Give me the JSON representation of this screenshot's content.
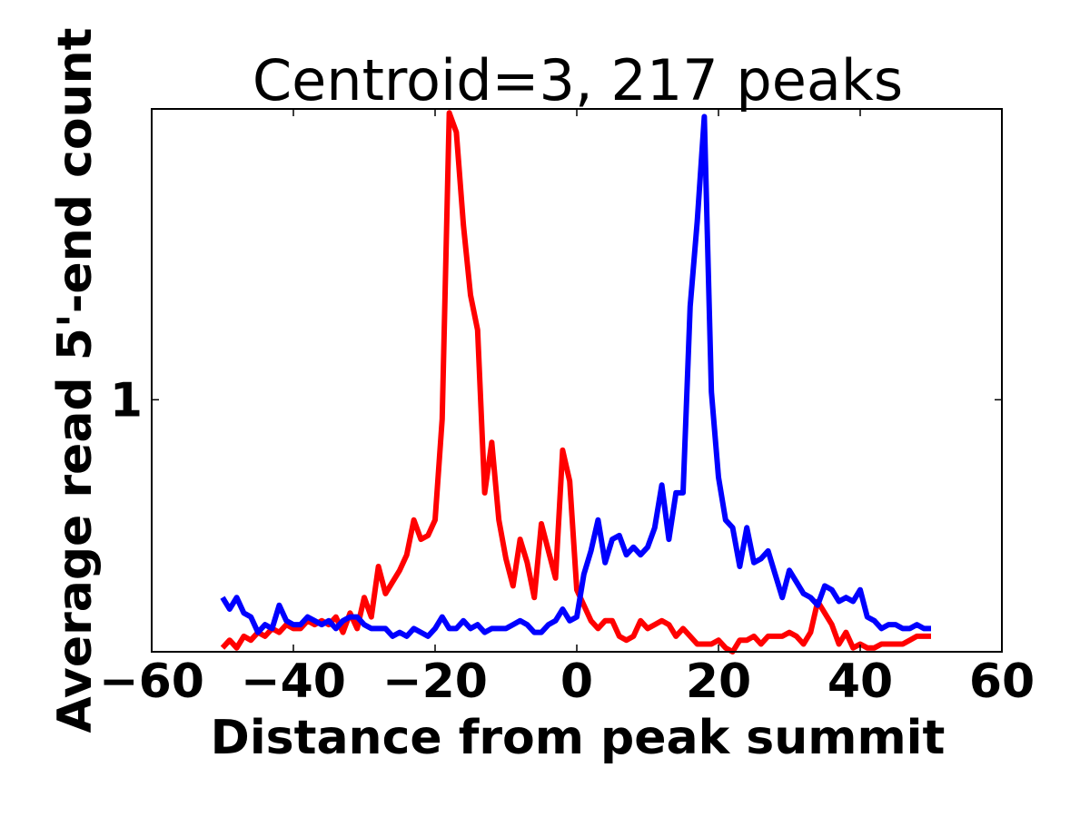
{
  "chart_data": {
    "type": "line",
    "title": "Centroid=3, 217 peaks",
    "xlabel": "Distance from peak summit",
    "ylabel": "Average read 5'-end count",
    "xlim": [
      -60,
      60
    ],
    "ylim": [
      0.35,
      1.75
    ],
    "x_ticks": [
      -60,
      -40,
      -20,
      0,
      20,
      40,
      60
    ],
    "x_tick_labels": [
      "−60",
      "−40",
      "−20",
      "0",
      "20",
      "40",
      "60"
    ],
    "y_ticks": [
      1
    ],
    "y_tick_labels": [
      "1"
    ],
    "grid": false,
    "legend": "none",
    "x": [
      -50,
      -49,
      -48,
      -47,
      -46,
      -45,
      -44,
      -43,
      -42,
      -41,
      -40,
      -39,
      -38,
      -37,
      -36,
      -35,
      -34,
      -33,
      -32,
      -31,
      -30,
      -29,
      -28,
      -27,
      -26,
      -25,
      -24,
      -23,
      -22,
      -21,
      -20,
      -19,
      -18,
      -17,
      -16,
      -15,
      -14,
      -13,
      -12,
      -11,
      -10,
      -9,
      -8,
      -7,
      -6,
      -5,
      -4,
      -3,
      -2,
      -1,
      0,
      1,
      2,
      3,
      4,
      5,
      6,
      7,
      8,
      9,
      10,
      11,
      12,
      13,
      14,
      15,
      16,
      17,
      18,
      19,
      20,
      21,
      22,
      23,
      24,
      25,
      26,
      27,
      28,
      29,
      30,
      31,
      32,
      33,
      34,
      35,
      36,
      37,
      38,
      39,
      40,
      41,
      42,
      43,
      44,
      45,
      46,
      47,
      48,
      49,
      50
    ],
    "series": [
      {
        "color": "#ff0000",
        "values": [
          0.36,
          0.38,
          0.36,
          0.39,
          0.38,
          0.4,
          0.39,
          0.41,
          0.4,
          0.42,
          0.41,
          0.41,
          0.43,
          0.42,
          0.43,
          0.42,
          0.44,
          0.4,
          0.45,
          0.41,
          0.49,
          0.44,
          0.57,
          0.5,
          0.53,
          0.56,
          0.6,
          0.69,
          0.64,
          0.65,
          0.69,
          0.95,
          1.74,
          1.69,
          1.45,
          1.27,
          1.18,
          0.76,
          0.89,
          0.69,
          0.59,
          0.52,
          0.64,
          0.58,
          0.49,
          0.68,
          0.61,
          0.54,
          0.87,
          0.79,
          0.51,
          0.47,
          0.43,
          0.41,
          0.43,
          0.43,
          0.39,
          0.38,
          0.39,
          0.43,
          0.41,
          0.42,
          0.43,
          0.42,
          0.39,
          0.41,
          0.39,
          0.37,
          0.37,
          0.37,
          0.38,
          0.36,
          0.35,
          0.38,
          0.38,
          0.39,
          0.37,
          0.39,
          0.39,
          0.39,
          0.4,
          0.39,
          0.37,
          0.4,
          0.48,
          0.45,
          0.42,
          0.37,
          0.4,
          0.36,
          0.37,
          0.36,
          0.36,
          0.37,
          0.37,
          0.37,
          0.37,
          0.38,
          0.39,
          0.39,
          0.39
        ]
      },
      {
        "color": "#0000ff",
        "values": [
          0.49,
          0.46,
          0.49,
          0.45,
          0.44,
          0.4,
          0.42,
          0.41,
          0.47,
          0.43,
          0.42,
          0.42,
          0.44,
          0.43,
          0.42,
          0.43,
          0.41,
          0.43,
          0.44,
          0.44,
          0.42,
          0.41,
          0.41,
          0.41,
          0.39,
          0.4,
          0.39,
          0.41,
          0.4,
          0.39,
          0.41,
          0.44,
          0.41,
          0.41,
          0.43,
          0.41,
          0.42,
          0.4,
          0.41,
          0.41,
          0.41,
          0.42,
          0.43,
          0.42,
          0.4,
          0.4,
          0.42,
          0.43,
          0.46,
          0.43,
          0.44,
          0.55,
          0.61,
          0.69,
          0.58,
          0.64,
          0.65,
          0.6,
          0.62,
          0.6,
          0.62,
          0.67,
          0.78,
          0.64,
          0.76,
          0.76,
          1.24,
          1.46,
          1.73,
          1.02,
          0.8,
          0.69,
          0.67,
          0.57,
          0.67,
          0.58,
          0.59,
          0.61,
          0.55,
          0.49,
          0.56,
          0.53,
          0.5,
          0.49,
          0.47,
          0.52,
          0.51,
          0.48,
          0.49,
          0.48,
          0.51,
          0.44,
          0.43,
          0.41,
          0.42,
          0.42,
          0.41,
          0.41,
          0.42,
          0.41,
          0.41
        ]
      }
    ]
  }
}
